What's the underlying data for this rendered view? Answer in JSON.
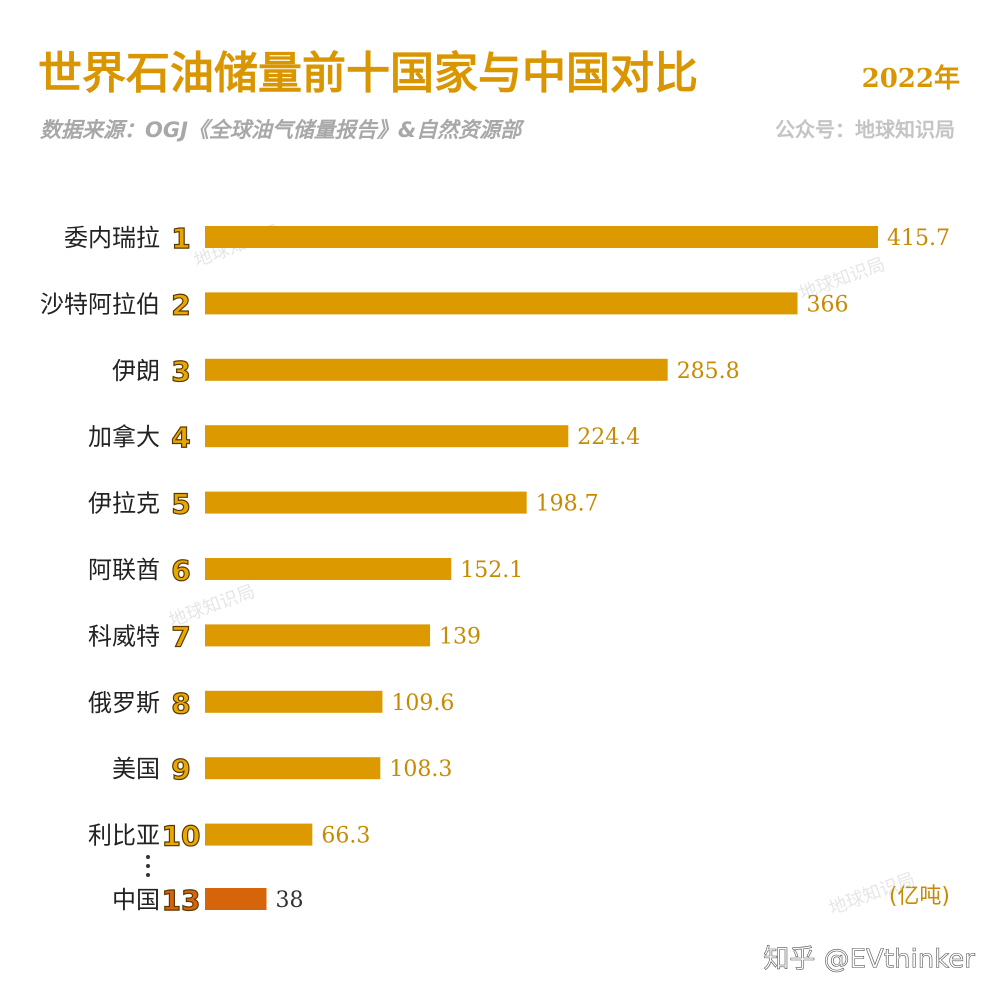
{
  "chart_data": {
    "type": "bar",
    "orientation": "horizontal",
    "title": "世界石油储量前十国家与中国对比",
    "subtitle": "2022年",
    "source": "数据来源：OGJ《全球油气储量报告》&自然资源部",
    "account": "公众号：地球知识局",
    "unit": "(亿吨)",
    "watermark": "地球知识局",
    "credit": "知乎 @EVthinker",
    "categories": [
      "委内瑞拉",
      "沙特阿拉伯",
      "伊朗",
      "加拿大",
      "伊拉克",
      "阿联酋",
      "科威特",
      "俄罗斯",
      "美国",
      "利比亚",
      "中国"
    ],
    "ranks": [
      1,
      2,
      3,
      4,
      5,
      6,
      7,
      8,
      9,
      10,
      13
    ],
    "values": [
      415.7,
      366,
      285.8,
      224.4,
      198.7,
      152.1,
      139,
      109.6,
      108.3,
      66.3,
      38
    ],
    "colors": [
      "#dc9a00",
      "#dc9a00",
      "#dc9a00",
      "#dc9a00",
      "#dc9a00",
      "#dc9a00",
      "#dc9a00",
      "#dc9a00",
      "#dc9a00",
      "#dc9a00",
      "#d5640a"
    ]
  }
}
